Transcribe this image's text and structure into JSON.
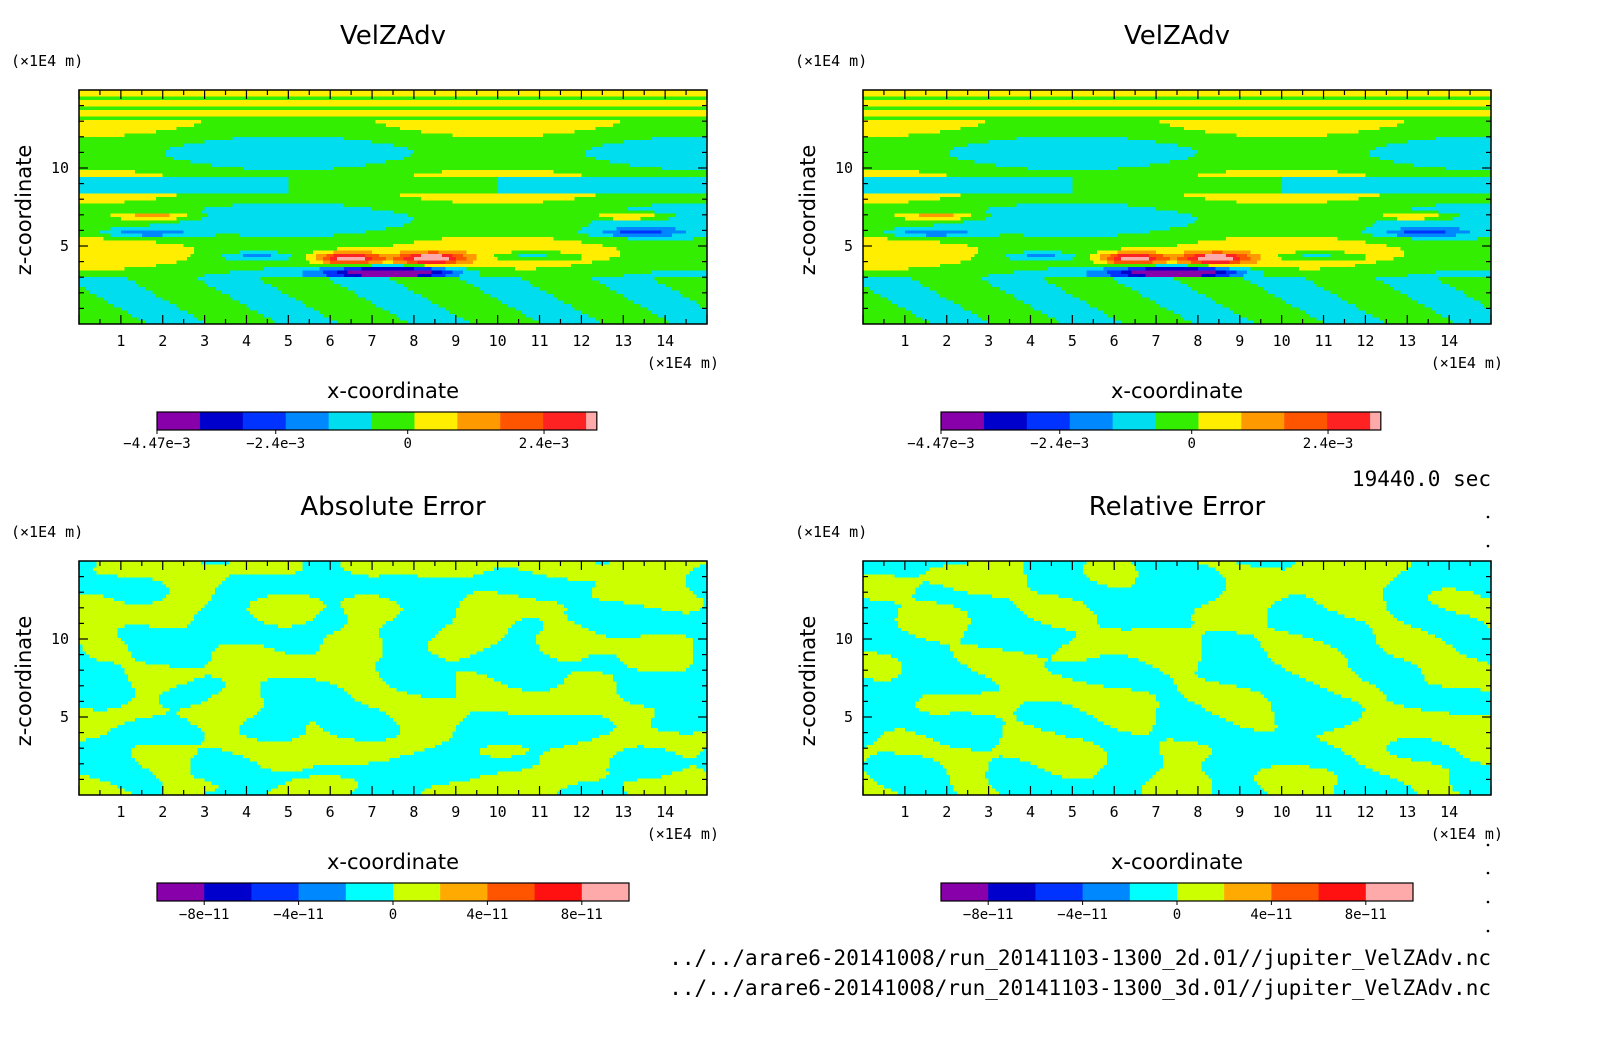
{
  "chart_data": [
    {
      "type": "heatmap",
      "title": "VelZAdv",
      "xlabel": "x-coordinate",
      "ylabel": "z-coordinate",
      "x_unit": "(×1E4 m)",
      "y_unit": "(×1E4 m)",
      "xlim": [
        0,
        15
      ],
      "ylim": [
        0,
        15
      ],
      "xticks": [
        1,
        2,
        3,
        4,
        5,
        6,
        7,
        8,
        9,
        10,
        11,
        12,
        13,
        14
      ],
      "yticks": [
        5,
        10
      ],
      "colorbar": {
        "colors": [
          "#8800aa",
          "#0000cc",
          "#0033ff",
          "#0088ff",
          "#00ddee",
          "#33ee00",
          "#ffee00",
          "#ff9900",
          "#ff5500",
          "#ff2222",
          "#ffaaaa"
        ],
        "labels": [
          {
            "text": "−4.47e−3",
            "at": 0.0
          },
          {
            "text": "−2.4e−3",
            "at": 0.27
          },
          {
            "text": "0",
            "at": 0.57
          },
          {
            "text": "2.4e−3",
            "at": 0.88
          }
        ]
      },
      "field": "velzadv"
    },
    {
      "type": "heatmap",
      "title": "VelZAdv",
      "xlabel": "x-coordinate",
      "ylabel": "z-coordinate",
      "x_unit": "(×1E4 m)",
      "y_unit": "(×1E4 m)",
      "xlim": [
        0,
        15
      ],
      "ylim": [
        0,
        15
      ],
      "xticks": [
        1,
        2,
        3,
        4,
        5,
        6,
        7,
        8,
        9,
        10,
        11,
        12,
        13,
        14
      ],
      "yticks": [
        5,
        10
      ],
      "colorbar": {
        "colors": [
          "#8800aa",
          "#0000cc",
          "#0033ff",
          "#0088ff",
          "#00ddee",
          "#33ee00",
          "#ffee00",
          "#ff9900",
          "#ff5500",
          "#ff2222",
          "#ffaaaa"
        ],
        "labels": [
          {
            "text": "−4.47e−3",
            "at": 0.0
          },
          {
            "text": "−2.4e−3",
            "at": 0.27
          },
          {
            "text": "0",
            "at": 0.57
          },
          {
            "text": "2.4e−3",
            "at": 0.88
          }
        ]
      },
      "field": "velzadv"
    },
    {
      "type": "heatmap",
      "title": "Absolute Error",
      "xlabel": "x-coordinate",
      "ylabel": "z-coordinate",
      "x_unit": "(×1E4 m)",
      "y_unit": "(×1E4 m)",
      "xlim": [
        0,
        15
      ],
      "ylim": [
        0,
        15
      ],
      "xticks": [
        1,
        2,
        3,
        4,
        5,
        6,
        7,
        8,
        9,
        10,
        11,
        12,
        13,
        14
      ],
      "yticks": [
        5,
        10
      ],
      "colorbar": {
        "colors": [
          "#8800aa",
          "#0000cc",
          "#0033ff",
          "#0088ff",
          "#00ffff",
          "#ccff00",
          "#ffaa00",
          "#ff5500",
          "#ff1111",
          "#ffaaaa"
        ],
        "labels": [
          {
            "text": "−8e−11",
            "at": 0.1
          },
          {
            "text": "−4e−11",
            "at": 0.3
          },
          {
            "text": "0",
            "at": 0.5
          },
          {
            "text": "4e−11",
            "at": 0.7
          },
          {
            "text": "8e−11",
            "at": 0.9
          }
        ]
      },
      "field": "noise",
      "seed": 3
    },
    {
      "type": "heatmap",
      "title": "Relative Error",
      "xlabel": "x-coordinate",
      "ylabel": "z-coordinate",
      "x_unit": "(×1E4 m)",
      "y_unit": "(×1E4 m)",
      "xlim": [
        0,
        15
      ],
      "ylim": [
        0,
        15
      ],
      "xticks": [
        1,
        2,
        3,
        4,
        5,
        6,
        7,
        8,
        9,
        10,
        11,
        12,
        13,
        14
      ],
      "yticks": [
        5,
        10
      ],
      "colorbar": {
        "colors": [
          "#8800aa",
          "#0000cc",
          "#0033ff",
          "#0088ff",
          "#00ffff",
          "#ccff00",
          "#ffaa00",
          "#ff5500",
          "#ff1111",
          "#ffaaaa"
        ],
        "labels": [
          {
            "text": "−8e−11",
            "at": 0.1
          },
          {
            "text": "−4e−11",
            "at": 0.3
          },
          {
            "text": "0",
            "at": 0.5
          },
          {
            "text": "4e−11",
            "at": 0.7
          },
          {
            "text": "8e−11",
            "at": 0.9
          }
        ]
      },
      "field": "noise",
      "seed": 11
    }
  ],
  "time_label": "19440.0 sec",
  "file_lines": [
    "../../arare6-20141008/run_20141103-1300_2d.01//jupiter_VelZAdv.nc",
    "../../arare6-20141008/run_20141103-1300_3d.01//jupiter_VelZAdv.nc"
  ]
}
